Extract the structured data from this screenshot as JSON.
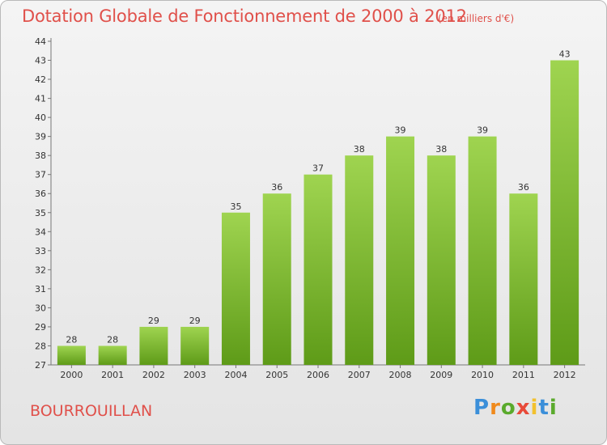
{
  "chart_data": {
    "type": "bar",
    "title": "Dotation Globale de Fonctionnement de 2000 à 2012",
    "unit_label": "(en milliers d'€)",
    "categories": [
      "2000",
      "2001",
      "2002",
      "2003",
      "2004",
      "2005",
      "2006",
      "2007",
      "2008",
      "2009",
      "2010",
      "2011",
      "2012"
    ],
    "values": [
      28,
      28,
      29,
      29,
      35,
      36,
      37,
      38,
      39,
      38,
      39,
      36,
      43
    ],
    "ylim": [
      27,
      44
    ],
    "yticks": [
      27,
      28,
      29,
      30,
      31,
      32,
      33,
      34,
      35,
      36,
      37,
      38,
      39,
      40,
      41,
      42,
      43,
      44
    ],
    "grid": false,
    "bar_color_top": "#9fd450",
    "bar_color_bottom": "#5e9b18"
  },
  "commune": "BOURROUILLAN",
  "logo": {
    "text": "Proxiti",
    "letters": [
      "P",
      "r",
      "o",
      "x",
      "i",
      "t",
      "i"
    ]
  }
}
